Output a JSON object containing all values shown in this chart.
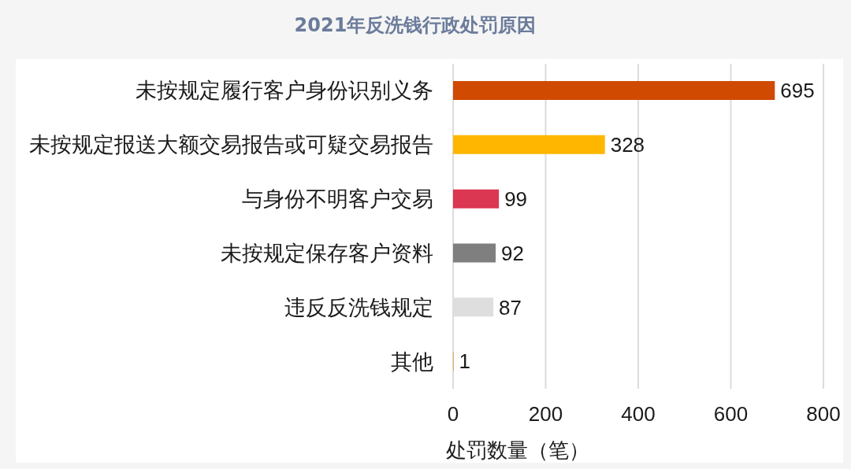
{
  "chart_data": {
    "type": "bar",
    "orientation": "horizontal",
    "title": "2021年反洗钱行政处罚原因",
    "xlabel": "处罚数量（笔）",
    "categories": [
      "未按规定履行客户身份识别义务",
      "未按规定报送大额交易报告或可疑交易报告",
      "与身份不明客户交易",
      "未按规定保存客户资料",
      "违反反洗钱规定",
      "其他"
    ],
    "values": [
      695,
      328,
      99,
      92,
      87,
      1
    ],
    "colors": [
      "#d04a02",
      "#ffb600",
      "#db3652",
      "#7f7f7f",
      "#dedede",
      "#eb8c00"
    ],
    "xlim": [
      0,
      800
    ],
    "xticks": [
      0,
      200,
      400,
      600,
      800
    ],
    "grid": "x",
    "data_labels": true
  }
}
